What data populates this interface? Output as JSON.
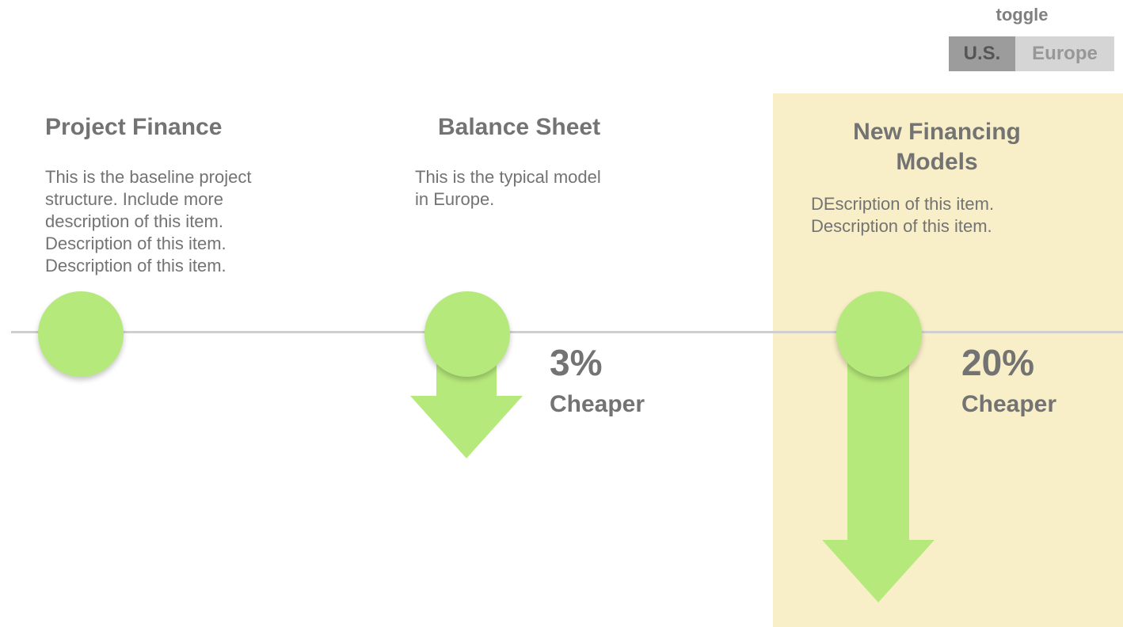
{
  "toggle": {
    "label": "toggle",
    "options": [
      "U.S.",
      "Europe"
    ],
    "selected": "U.S."
  },
  "columns": [
    {
      "title": "Project Finance",
      "description": [
        "This is the baseline project",
        "structure. Include more",
        "description of this item.",
        "Description of this item.",
        "Description of this item."
      ]
    },
    {
      "title": "Balance Sheet",
      "description": [
        "This is the typical model",
        "in Europe."
      ],
      "savings_pct": "3%",
      "savings_label": "Cheaper"
    },
    {
      "title": [
        "New Financing",
        "Models"
      ],
      "description": [
        "DEscription of this item.",
        "Description of this item."
      ],
      "savings_pct": "20%",
      "savings_label": "Cheaper",
      "highlighted": true
    }
  ],
  "colors": {
    "node_green": "#b6e97b",
    "highlight_bg": "#f8efc8",
    "timeline_gray": "#cfcfcf",
    "text_gray": "#737373",
    "toggle_active": "#9c9c9c",
    "toggle_inactive": "#d5d5d5"
  },
  "icons": [
    "down-arrow-icon"
  ]
}
